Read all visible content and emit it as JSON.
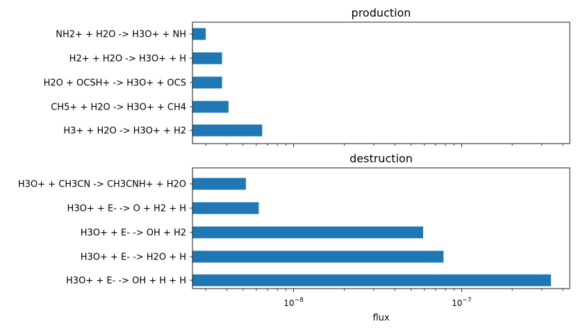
{
  "chart_data": [
    {
      "type": "bar",
      "orientation": "horizontal",
      "title": "production",
      "xscale": "log",
      "xlim": [
        2.5e-09,
        4.4e-07
      ],
      "categories": [
        "H3+ + H2O -> H3O+ + H2",
        "CH5+ + H2O -> H3O+ + CH4",
        "H2O + OCSH+ -> H3O+ + OCS",
        "H2+ + H2O -> H3O+ + H",
        "NH2+ + H2O -> H3O+ + NH"
      ],
      "values": [
        6.5e-09,
        4.1e-09,
        3.75e-09,
        3.75e-09,
        3e-09
      ],
      "xlabel": "",
      "xticks_shown": false,
      "bar_color": "#1f77b4"
    },
    {
      "type": "bar",
      "orientation": "horizontal",
      "title": "destruction",
      "xscale": "log",
      "xlim": [
        2.5e-09,
        4.4e-07
      ],
      "categories": [
        "H3O+ + E- -> OH + H + H",
        "H3O+ + E- -> H2O + H",
        "H3O+ + E- -> OH + H2",
        "H3O+ + E- -> O + H2 + H",
        "H3O+ + CH3CN -> CH3CNH+ + H2O"
      ],
      "values": [
        3.4e-07,
        7.8e-08,
        5.9e-08,
        6.2e-09,
        5.2e-09
      ],
      "xlabel": "flux",
      "xticks_shown": true,
      "xtick_labels": [
        {
          "value": 1e-08,
          "base": "10",
          "exp": "−8"
        },
        {
          "value": 1e-07,
          "base": "10",
          "exp": "−7"
        }
      ],
      "bar_color": "#1f77b4"
    }
  ]
}
